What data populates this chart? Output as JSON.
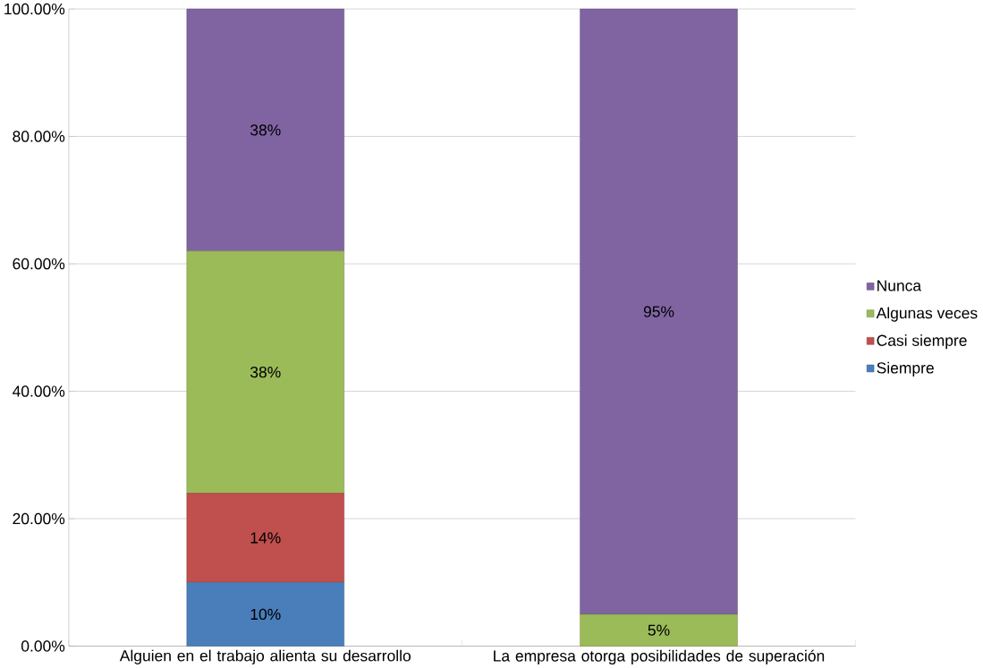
{
  "chart_data": {
    "type": "bar",
    "stacked": true,
    "categories": [
      "Alguien en el trabajo alienta su desarrollo",
      "La empresa otorga posibilidades de superación"
    ],
    "series": [
      {
        "name": "Siempre",
        "color": "#4a7ebb",
        "values": [
          10,
          0
        ],
        "value_labels": [
          "10%",
          null
        ]
      },
      {
        "name": "Casi siempre",
        "color": "#c0504d",
        "values": [
          14,
          0
        ],
        "value_labels": [
          "14%",
          null
        ]
      },
      {
        "name": "Algunas veces",
        "color": "#9bbb59",
        "values": [
          38,
          5
        ],
        "value_labels": [
          "38%",
          "5%"
        ]
      },
      {
        "name": "Nunca",
        "color": "#8064a2",
        "values": [
          38,
          95
        ],
        "value_labels": [
          "38%",
          "95%"
        ]
      }
    ],
    "ylim": [
      0,
      100
    ],
    "yticks": [
      {
        "value": 0,
        "label": "0.00%"
      },
      {
        "value": 20,
        "label": "20.00%"
      },
      {
        "value": 40,
        "label": "40.00%"
      },
      {
        "value": 60,
        "label": "60.00%"
      },
      {
        "value": 80,
        "label": "80.00%"
      },
      {
        "value": 100,
        "label": "100.00%"
      }
    ],
    "grid": "y",
    "legend": "right"
  }
}
